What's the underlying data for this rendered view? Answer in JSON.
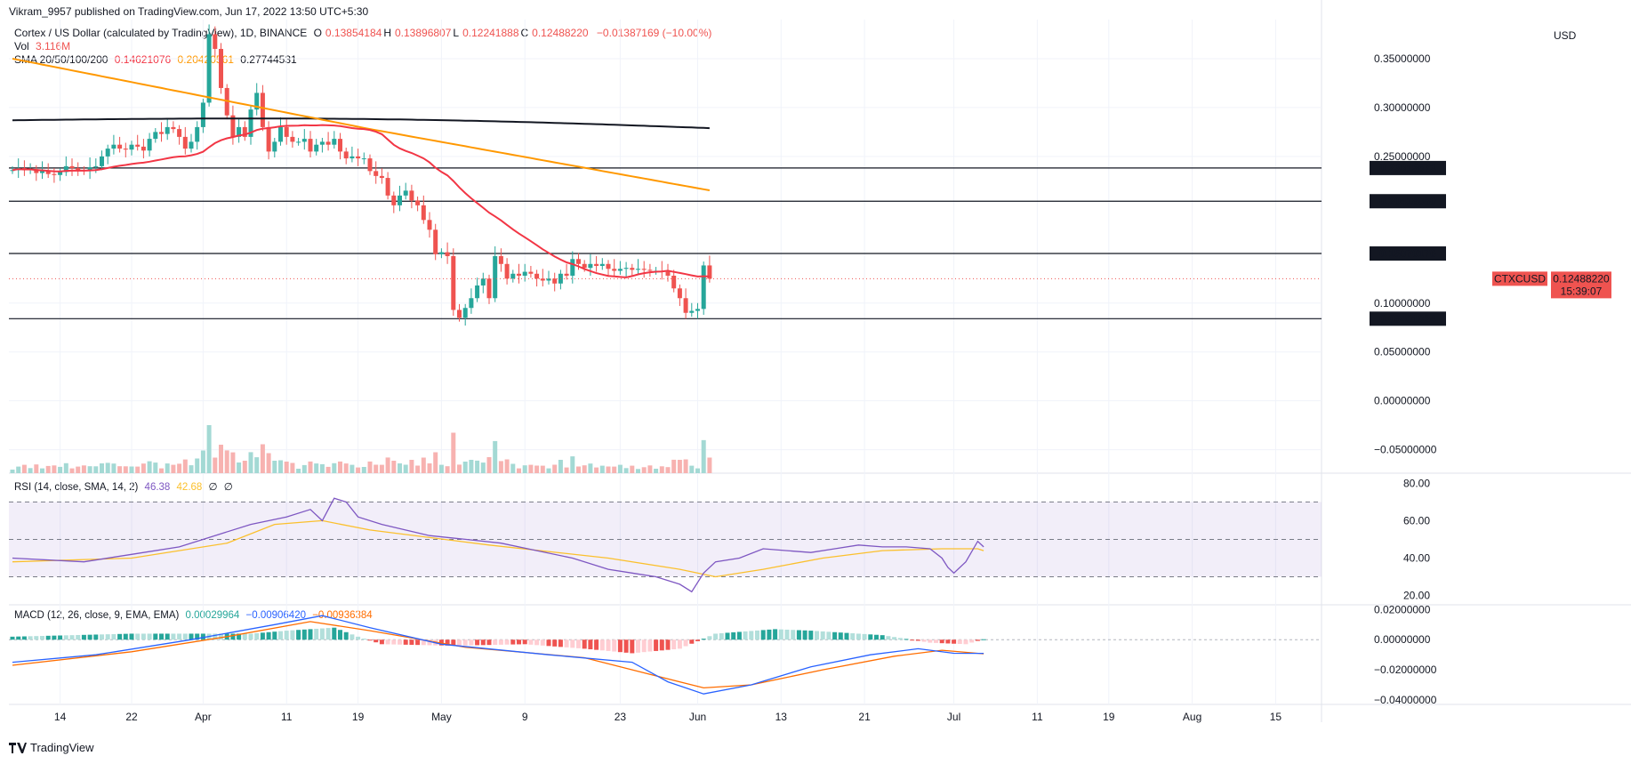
{
  "publisher_line": "Vikram_9957 published on TradingView.com, Jun 17, 2022 13:50 UTC+5:30",
  "header": {
    "symbol": "Cortex / US Dollar (calculated by TradingView), 1D, BINANCE",
    "ohlc": [
      {
        "label": "O",
        "value": "0.13854184"
      },
      {
        "label": "H",
        "value": "0.13896807"
      },
      {
        "label": "L",
        "value": "0.12241888"
      },
      {
        "label": "C",
        "value": "0.12488220"
      }
    ],
    "change": "−0.01387169 (−10.00%)",
    "vol_label": "Vol",
    "vol_value": "3.116M",
    "sma_label": "SMA 20/50/100/200",
    "sma_values": [
      "0.14621076",
      "0.20420561",
      "0.27744531"
    ]
  },
  "currency": "USD",
  "colors": {
    "up": "#26a69a",
    "down": "#ef5350",
    "sma50": "#f23645",
    "sma100": "#ff9800",
    "sma200": "#131722",
    "rsi": "#7e57c2",
    "rsi_ma": "#fbc02d",
    "macd": "#2962ff",
    "signal": "#ff6d00"
  },
  "chart_data": [
    {
      "type": "candlestick",
      "name": "price",
      "x_tick_labels": [
        "14",
        "22",
        "Apr",
        "11",
        "19",
        "May",
        "9",
        "23",
        "Jun",
        "13",
        "21",
        "Jul",
        "11",
        "19",
        "Aug",
        "15"
      ],
      "y_axis_labels": [
        "0.35000000",
        "0.30000000",
        "0.25000000",
        "0.10000000",
        "0.05000000",
        "0.00000000",
        "−0.05000000"
      ],
      "ylim": [
        -0.074,
        0.39
      ],
      "horizontal_levels": [
        {
          "value": 0.23815573,
          "label": "0.23815573"
        },
        {
          "value": 0.2041808,
          "label": "0.20418080"
        },
        {
          "value": 0.15070176,
          "label": "0.15070176"
        },
        {
          "value": 0.08401024,
          "label": "0.08401024"
        }
      ],
      "last_price_tag": {
        "symbol": "CTXCUSD",
        "value": "0.12488220",
        "countdown": "15:39:07"
      },
      "closes": [
        0.236,
        0.238,
        0.236,
        0.237,
        0.233,
        0.235,
        0.232,
        0.231,
        0.234,
        0.24,
        0.238,
        0.236,
        0.235,
        0.239,
        0.24,
        0.25,
        0.258,
        0.262,
        0.258,
        0.257,
        0.262,
        0.26,
        0.256,
        0.268,
        0.275,
        0.273,
        0.28,
        0.278,
        0.27,
        0.258,
        0.265,
        0.28,
        0.305,
        0.375,
        0.36,
        0.32,
        0.292,
        0.27,
        0.28,
        0.27,
        0.298,
        0.315,
        0.28,
        0.255,
        0.265,
        0.28,
        0.27,
        0.265,
        0.265,
        0.268,
        0.255,
        0.262,
        0.265,
        0.262,
        0.268,
        0.255,
        0.248,
        0.25,
        0.248,
        0.248,
        0.235,
        0.23,
        0.228,
        0.21,
        0.2,
        0.21,
        0.215,
        0.205,
        0.2,
        0.185,
        0.175,
        0.15,
        0.152,
        0.148,
        0.093,
        0.085,
        0.095,
        0.105,
        0.118,
        0.125,
        0.105,
        0.148,
        0.14,
        0.125,
        0.13,
        0.128,
        0.132,
        0.13,
        0.125,
        0.123,
        0.125,
        0.12,
        0.13,
        0.128,
        0.145,
        0.14,
        0.136,
        0.14,
        0.138,
        0.14,
        0.135,
        0.133,
        0.135,
        0.136,
        0.134,
        0.135,
        0.134,
        0.133,
        0.133,
        0.132,
        0.128,
        0.115,
        0.105,
        0.09,
        0.092,
        0.094,
        0.1385,
        0.1249
      ],
      "series": [
        {
          "name": "SMA 20",
          "style": "line"
        },
        {
          "name": "SMA 50",
          "style": "line"
        },
        {
          "name": "SMA 100",
          "style": "line"
        },
        {
          "name": "SMA 200",
          "style": "line"
        }
      ]
    },
    {
      "type": "line",
      "name": "RSI",
      "legend": "RSI (14, close, SMA, 14, 2)",
      "legend_values": [
        "46.38",
        "42.68",
        "∅",
        "∅"
      ],
      "y_axis_labels": [
        "80.00",
        "60.00",
        "40.00",
        "20.00"
      ],
      "ylim": [
        15,
        84
      ],
      "bands": [
        70,
        50,
        30
      ],
      "rsi_points": [
        [
          0,
          40
        ],
        [
          12,
          38
        ],
        [
          20,
          42
        ],
        [
          28,
          46
        ],
        [
          34,
          52
        ],
        [
          40,
          58
        ],
        [
          46,
          62
        ],
        [
          50,
          66
        ],
        [
          52,
          60
        ],
        [
          54,
          72
        ],
        [
          56,
          70
        ],
        [
          58,
          62
        ],
        [
          62,
          58
        ],
        [
          70,
          52
        ],
        [
          76,
          50
        ],
        [
          82,
          48
        ],
        [
          88,
          44
        ],
        [
          94,
          40
        ],
        [
          100,
          34
        ],
        [
          104,
          32
        ],
        [
          108,
          30
        ],
        [
          112,
          26
        ],
        [
          114,
          22
        ],
        [
          116,
          32
        ],
        [
          118,
          38
        ],
        [
          122,
          40
        ],
        [
          126,
          45
        ],
        [
          130,
          44
        ],
        [
          134,
          43
        ],
        [
          138,
          45
        ],
        [
          142,
          47
        ],
        [
          146,
          46
        ],
        [
          150,
          46
        ],
        [
          154,
          45
        ],
        [
          156,
          40
        ],
        [
          157,
          35
        ],
        [
          158,
          32
        ],
        [
          160,
          38
        ],
        [
          162,
          49
        ],
        [
          163,
          46
        ]
      ],
      "ma_points": [
        [
          0,
          38
        ],
        [
          20,
          40
        ],
        [
          36,
          48
        ],
        [
          44,
          58
        ],
        [
          52,
          60
        ],
        [
          60,
          55
        ],
        [
          80,
          47
        ],
        [
          100,
          40
        ],
        [
          112,
          34
        ],
        [
          118,
          30
        ],
        [
          126,
          34
        ],
        [
          136,
          40
        ],
        [
          146,
          44
        ],
        [
          156,
          45
        ],
        [
          162,
          45
        ],
        [
          163,
          44
        ]
      ]
    },
    {
      "type": "bar+line",
      "name": "MACD",
      "legend": "MACD (12, 26, close, 9, EMA, EMA)",
      "legend_values": [
        "0.00029964",
        "−0.00906420",
        "−0.00936384"
      ],
      "y_axis_labels": [
        "0.02000000",
        "0.00000000",
        "−0.02000000",
        "−0.04000000"
      ],
      "ylim": [
        -0.043,
        0.022
      ],
      "macd_points": [
        [
          0,
          -0.015
        ],
        [
          14,
          -0.01
        ],
        [
          30,
          0.0
        ],
        [
          44,
          0.01
        ],
        [
          52,
          0.016
        ],
        [
          60,
          0.008
        ],
        [
          72,
          -0.003
        ],
        [
          90,
          -0.01
        ],
        [
          104,
          -0.015
        ],
        [
          110,
          -0.028
        ],
        [
          116,
          -0.036
        ],
        [
          124,
          -0.03
        ],
        [
          134,
          -0.018
        ],
        [
          144,
          -0.01
        ],
        [
          152,
          -0.006
        ],
        [
          158,
          -0.009
        ],
        [
          163,
          -0.0091
        ]
      ],
      "signal_points": [
        [
          0,
          -0.017
        ],
        [
          20,
          -0.008
        ],
        [
          36,
          0.002
        ],
        [
          50,
          0.012
        ],
        [
          60,
          0.006
        ],
        [
          76,
          -0.005
        ],
        [
          96,
          -0.012
        ],
        [
          106,
          -0.022
        ],
        [
          116,
          -0.032
        ],
        [
          124,
          -0.03
        ],
        [
          136,
          -0.02
        ],
        [
          148,
          -0.011
        ],
        [
          156,
          -0.007
        ],
        [
          163,
          -0.0094
        ]
      ],
      "histogram_points": [
        [
          0,
          0.002
        ],
        [
          20,
          0.004
        ],
        [
          40,
          0.004
        ],
        [
          46,
          0.006
        ],
        [
          54,
          0.008
        ],
        [
          58,
          0.002
        ],
        [
          62,
          -0.003
        ],
        [
          74,
          -0.004
        ],
        [
          86,
          -0.003
        ],
        [
          96,
          -0.006
        ],
        [
          104,
          -0.009
        ],
        [
          112,
          -0.006
        ],
        [
          118,
          0.004
        ],
        [
          128,
          0.007
        ],
        [
          134,
          0.006
        ],
        [
          146,
          0.003
        ],
        [
          154,
          -0.002
        ],
        [
          160,
          -0.003
        ],
        [
          163,
          0.0003
        ]
      ]
    }
  ],
  "footer_brand": "TradingView"
}
